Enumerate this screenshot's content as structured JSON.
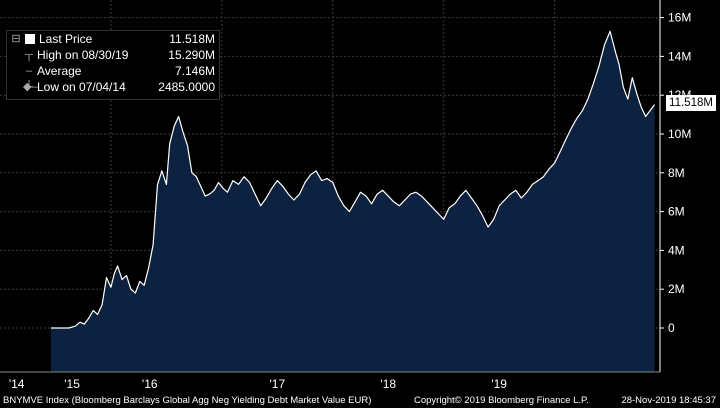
{
  "chart_data": {
    "type": "area",
    "title": "",
    "xlabel": "",
    "ylabel": "",
    "ylim": [
      -1.5,
      16.5
    ],
    "yticks": [
      0,
      2,
      4,
      6,
      8,
      10,
      12,
      14,
      16
    ],
    "ytick_labels": [
      "0",
      "2M",
      "4M",
      "6M",
      "8M",
      "10M",
      "12M",
      "14M",
      "16M"
    ],
    "xtick_labels": [
      "'14",
      "'15",
      "'16",
      "'17",
      "'18",
      "'19"
    ],
    "grid": true,
    "legend_position": "top-left",
    "colors": {
      "fill": "#0c2240",
      "line": "#ffffff",
      "grid": "#3a3a3a",
      "background": "#000000"
    },
    "x": [
      2014.46,
      2014.55,
      2014.62,
      2014.68,
      2014.72,
      2014.76,
      2014.8,
      2014.84,
      2014.88,
      2014.92,
      2014.96,
      2015.0,
      2015.03,
      2015.06,
      2015.1,
      2015.14,
      2015.18,
      2015.22,
      2015.26,
      2015.3,
      2015.34,
      2015.38,
      2015.42,
      2015.46,
      2015.5,
      2015.53,
      2015.57,
      2015.61,
      2015.65,
      2015.69,
      2015.73,
      2015.77,
      2015.81,
      2015.85,
      2015.89,
      2015.93,
      2015.97,
      2016.01,
      2016.05,
      2016.1,
      2016.15,
      2016.2,
      2016.25,
      2016.3,
      2016.35,
      2016.4,
      2016.45,
      2016.5,
      2016.55,
      2016.6,
      2016.65,
      2016.7,
      2016.75,
      2016.8,
      2016.85,
      2016.9,
      2016.95,
      2017.0,
      2017.05,
      2017.1,
      2017.15,
      2017.2,
      2017.25,
      2017.3,
      2017.35,
      2017.4,
      2017.45,
      2017.5,
      2017.55,
      2017.6,
      2017.65,
      2017.7,
      2017.75,
      2017.8,
      2017.85,
      2017.9,
      2017.95,
      2018.0,
      2018.05,
      2018.1,
      2018.15,
      2018.2,
      2018.25,
      2018.3,
      2018.35,
      2018.4,
      2018.45,
      2018.5,
      2018.55,
      2018.6,
      2018.65,
      2018.7,
      2018.75,
      2018.8,
      2018.85,
      2018.9,
      2018.95,
      2019.0,
      2019.05,
      2019.1,
      2019.15,
      2019.2,
      2019.25,
      2019.3,
      2019.35,
      2019.4,
      2019.45,
      2019.5,
      2019.55,
      2019.58,
      2019.62,
      2019.66,
      2019.7,
      2019.74,
      2019.78,
      2019.82,
      2019.86,
      2019.9
    ],
    "values": [
      0.0,
      0.0,
      0.0,
      0.1,
      0.3,
      0.2,
      0.5,
      0.9,
      0.7,
      1.2,
      2.6,
      2.1,
      2.8,
      3.2,
      2.5,
      2.7,
      2.0,
      1.8,
      2.4,
      2.2,
      3.1,
      4.3,
      7.4,
      8.1,
      7.4,
      9.5,
      10.4,
      10.9,
      10.1,
      9.4,
      8.0,
      7.8,
      7.3,
      6.8,
      6.9,
      7.1,
      7.5,
      7.2,
      7.0,
      7.6,
      7.4,
      7.8,
      7.5,
      6.9,
      6.3,
      6.7,
      7.2,
      7.6,
      7.3,
      6.9,
      6.6,
      6.9,
      7.5,
      7.9,
      8.1,
      7.6,
      7.7,
      7.5,
      6.8,
      6.3,
      6.0,
      6.5,
      7.0,
      6.8,
      6.4,
      6.9,
      7.1,
      6.8,
      6.5,
      6.3,
      6.6,
      6.9,
      7.0,
      6.8,
      6.5,
      6.2,
      5.9,
      5.6,
      6.2,
      6.4,
      6.8,
      7.1,
      6.7,
      6.3,
      5.8,
      5.2,
      5.6,
      6.3,
      6.6,
      6.9,
      7.1,
      6.7,
      7.0,
      7.4,
      7.6,
      7.8,
      8.2,
      8.5,
      9.1,
      9.7,
      10.3,
      10.8,
      11.2,
      11.8,
      12.6,
      13.5,
      14.6,
      15.29,
      14.2,
      13.6,
      12.4,
      11.8,
      12.9,
      12.1,
      11.4,
      10.9,
      11.2,
      11.518
    ],
    "stats": {
      "last_price": "11.518M",
      "high_label": "High on 08/30/19",
      "high_value": "15.290M",
      "average": "7.146M",
      "low_label": "Low on 07/04/14",
      "low_value": "2485.0000"
    }
  },
  "legend": {
    "last_label": "Last Price",
    "last_value": "11.518M",
    "high_label": "High on 08/30/19",
    "high_value": "15.290M",
    "average_label": "Average",
    "average_value": "7.146M",
    "low_label": "Low on 07/04/14",
    "low_value": "2485.0000",
    "high_icon": "T-marker-icon",
    "average_icon": "diamond-icon",
    "low_icon": "inverted-T-icon"
  },
  "last_price_box": "11.518M",
  "footer": {
    "index_name": "BNYMVE Index (Bloomberg Barclays Global Agg Neg Yielding Debt Market Value EUR)",
    "copyright": "Copyright© 2019 Bloomberg Finance L.P.",
    "timestamp": "28-Nov-2019 18:45:37"
  }
}
